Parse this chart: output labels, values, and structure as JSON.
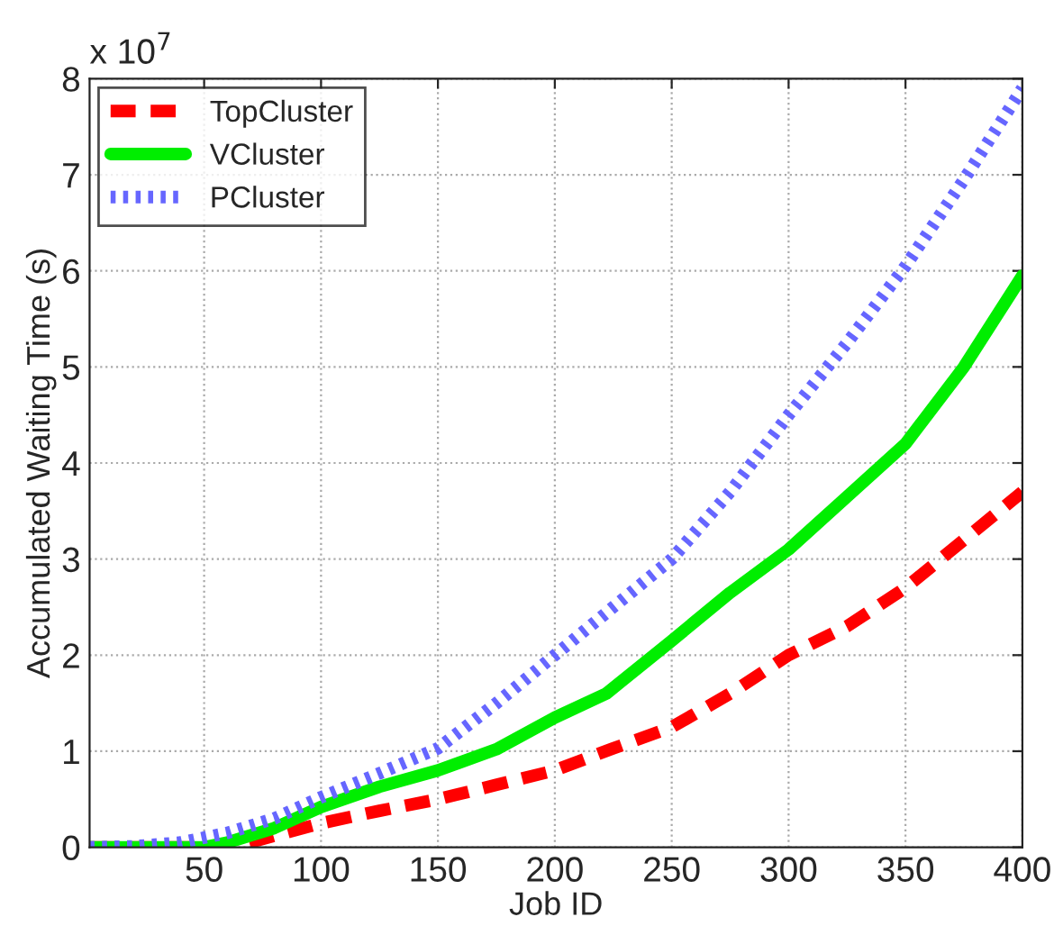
{
  "chart_data": {
    "type": "line",
    "xlabel": "Job ID",
    "ylabel": "Accumulated Waiting Time (s)",
    "annotations": [
      "x 10$^{7}$"
    ],
    "xlim": [
      1,
      400
    ],
    "xticks": [
      50,
      100,
      150,
      200,
      250,
      300,
      350,
      400
    ],
    "ylim": [
      0,
      8
    ],
    "yticks": [
      0,
      1,
      2,
      3,
      4,
      5,
      6,
      7,
      8
    ],
    "grid": true,
    "legend": "top left",
    "marker": "none",
    "series": [
      {
        "name": "TopCluster",
        "color": "#ff0000",
        "line_style": "dashed",
        "x": [
          1,
          55,
          65,
          80,
          100,
          125,
          150,
          175,
          200,
          225,
          250,
          275,
          300,
          325,
          350,
          375,
          400
        ],
        "values": [
          0,
          0,
          0.02,
          0.12,
          0.25,
          0.38,
          0.5,
          0.65,
          0.8,
          1.03,
          1.25,
          1.6,
          2.0,
          2.3,
          2.7,
          3.2,
          3.7
        ]
      },
      {
        "name": "VCluster",
        "color": "#00ee00",
        "line_style": "solid",
        "x": [
          1,
          50,
          60,
          80,
          100,
          125,
          150,
          175,
          200,
          222,
          250,
          275,
          300,
          325,
          350,
          375,
          400
        ],
        "values": [
          0,
          0,
          0.05,
          0.2,
          0.42,
          0.63,
          0.8,
          1.02,
          1.35,
          1.6,
          2.15,
          2.65,
          3.1,
          3.65,
          4.2,
          5.0,
          5.95
        ]
      },
      {
        "name": "PCluster",
        "color": "#6666ff",
        "line_style": "dotted",
        "x": [
          1,
          20,
          40,
          60,
          80,
          100,
          125,
          150,
          175,
          200,
          225,
          250,
          275,
          300,
          325,
          350,
          375,
          400
        ],
        "values": [
          0,
          0.01,
          0.05,
          0.15,
          0.3,
          0.52,
          0.77,
          1.03,
          1.5,
          2.0,
          2.5,
          3.0,
          3.7,
          4.5,
          5.25,
          6.05,
          6.95,
          7.9
        ]
      }
    ]
  }
}
